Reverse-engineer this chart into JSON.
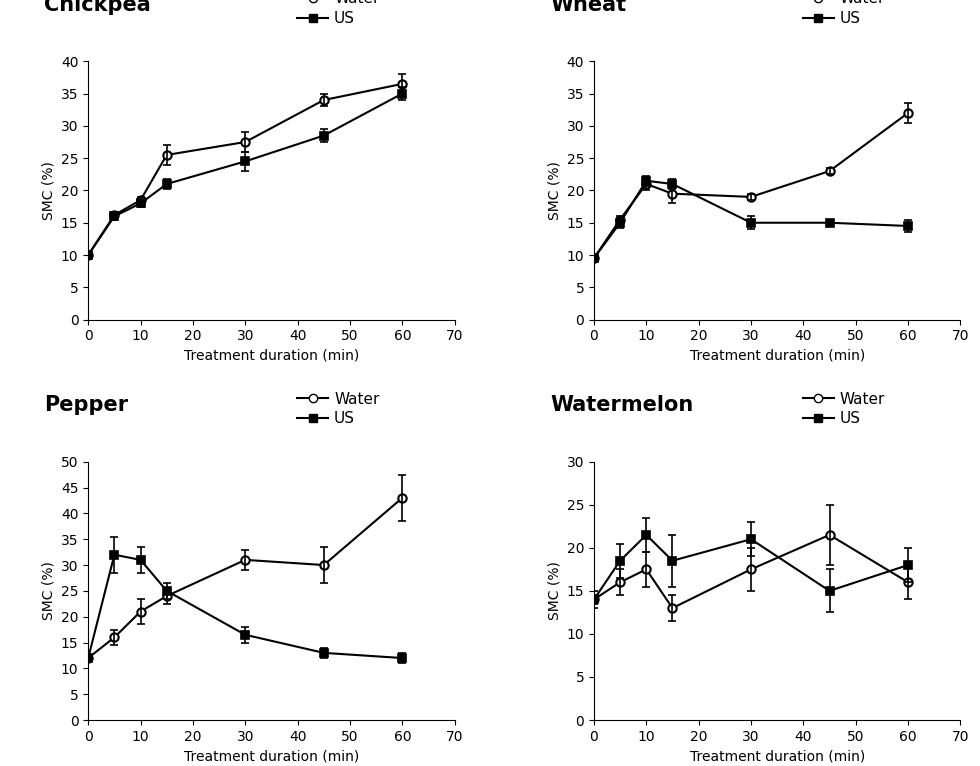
{
  "x": [
    0,
    5,
    10,
    15,
    30,
    45,
    60
  ],
  "chickpea": {
    "water_y": [
      10.0,
      16.2,
      18.5,
      25.5,
      27.5,
      34.0,
      36.5
    ],
    "water_err": [
      0.0,
      0.5,
      0.5,
      1.5,
      1.5,
      1.0,
      1.5
    ],
    "us_y": [
      10.0,
      16.0,
      18.0,
      21.0,
      24.5,
      28.5,
      35.0
    ],
    "us_err": [
      0.0,
      0.5,
      0.5,
      0.8,
      1.5,
      1.0,
      1.0
    ],
    "title": "Chickpea",
    "ylim": [
      0,
      40
    ],
    "yticks": [
      0,
      5,
      10,
      15,
      20,
      25,
      30,
      35,
      40
    ]
  },
  "wheat": {
    "water_y": [
      9.5,
      15.5,
      21.0,
      19.5,
      19.0,
      23.0,
      32.0
    ],
    "water_err": [
      0.0,
      0.5,
      1.0,
      1.5,
      0.5,
      0.5,
      1.5
    ],
    "us_y": [
      9.5,
      15.0,
      21.5,
      21.0,
      15.0,
      15.0,
      14.5
    ],
    "us_err": [
      0.0,
      0.8,
      0.8,
      0.8,
      1.0,
      0.5,
      1.0
    ],
    "title": "Wheat",
    "ylim": [
      0,
      40
    ],
    "yticks": [
      0,
      5,
      10,
      15,
      20,
      25,
      30,
      35,
      40
    ]
  },
  "pepper": {
    "water_y": [
      12.0,
      16.0,
      21.0,
      24.0,
      31.0,
      30.0,
      43.0
    ],
    "water_err": [
      0.5,
      1.5,
      2.5,
      1.5,
      2.0,
      3.5,
      4.5
    ],
    "us_y": [
      12.0,
      32.0,
      31.0,
      25.0,
      16.5,
      13.0,
      12.0
    ],
    "us_err": [
      0.5,
      3.5,
      2.5,
      1.5,
      1.5,
      1.0,
      1.0
    ],
    "title": "Pepper",
    "ylim": [
      0,
      50
    ],
    "yticks": [
      0,
      5,
      10,
      15,
      20,
      25,
      30,
      35,
      40,
      45,
      50
    ]
  },
  "watermelon": {
    "water_y": [
      14.0,
      16.0,
      17.5,
      13.0,
      17.5,
      21.5,
      16.0
    ],
    "water_err": [
      1.0,
      1.5,
      2.0,
      1.5,
      2.5,
      3.5,
      2.0
    ],
    "us_y": [
      14.0,
      18.5,
      21.5,
      18.5,
      21.0,
      15.0,
      18.0
    ],
    "us_err": [
      0.5,
      2.0,
      2.0,
      3.0,
      2.0,
      2.5,
      2.0
    ],
    "title": "Watermelon",
    "ylim": [
      0,
      30
    ],
    "yticks": [
      0,
      5,
      10,
      15,
      20,
      25,
      30
    ]
  },
  "xlabel": "Treatment duration (min)",
  "ylabel": "SMC (%)",
  "xlim": [
    0,
    70
  ],
  "xticks": [
    0,
    10,
    20,
    30,
    40,
    50,
    60,
    70
  ],
  "water_label": "Water",
  "us_label": "US",
  "line_color": "black",
  "title_fontsize": 15,
  "label_fontsize": 10,
  "tick_fontsize": 10,
  "legend_fontsize": 11
}
